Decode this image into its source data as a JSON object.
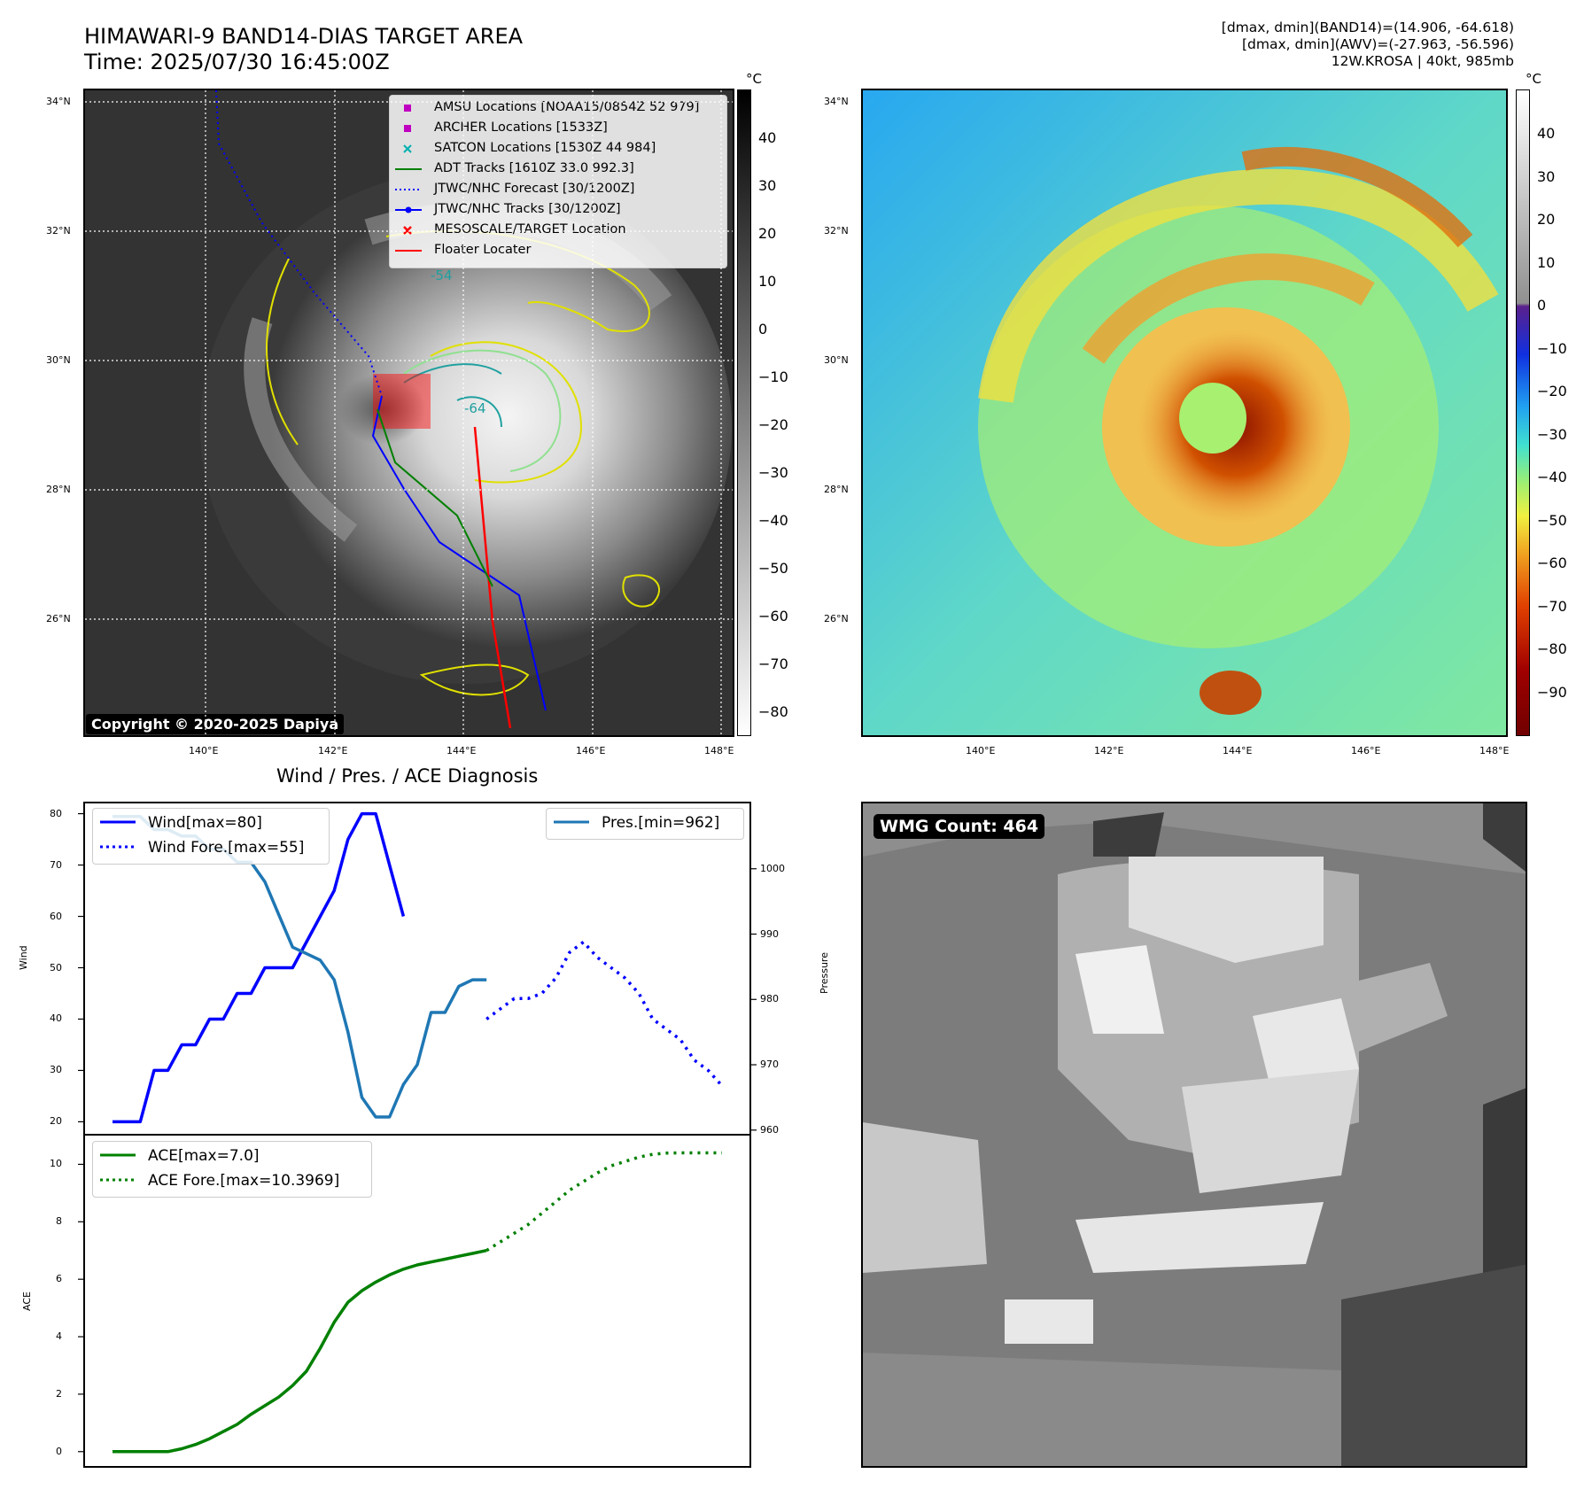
{
  "header": {
    "title_line1": "HIMAWARI-9 BAND14-DIAS TARGET AREA",
    "title_line2": "Time: 2025/07/30 16:45:00Z",
    "info_line1": "[dmax, dmin](BAND14)=(14.906, -64.618)",
    "info_line2": "[dmax, dmin](AWV)=(-27.963, -56.596)",
    "info_line3": "12W.KROSA | 40kt, 985mb"
  },
  "maps": {
    "lat_labels": [
      "34°N",
      "32°N",
      "30°N",
      "28°N",
      "26°N"
    ],
    "lon_labels": [
      "140°E",
      "142°E",
      "144°E",
      "146°E",
      "148°E"
    ],
    "colorbar1": {
      "unit": "°C",
      "ticks": [
        "40",
        "30",
        "20",
        "10",
        "0",
        "−10",
        "−20",
        "−30",
        "−40",
        "−50",
        "−60",
        "−70",
        "−80"
      ]
    },
    "colorbar2": {
      "unit": "°C",
      "ticks": [
        "40",
        "30",
        "20",
        "10",
        "0",
        "−10",
        "−20",
        "−30",
        "−40",
        "−50",
        "−60",
        "−70",
        "−80",
        "−90"
      ]
    },
    "contour_labels": [
      "-54",
      "-64"
    ],
    "copyright": "Copyright © 2020-2025 Dapiya",
    "legend": [
      {
        "label": "AMSU Locations [NOAA15/0854Z 52 979]",
        "marker": "square",
        "color": "#c000c0"
      },
      {
        "label": "ARCHER Locations [1533Z]",
        "marker": "square",
        "color": "#c000c0"
      },
      {
        "label": "SATCON Locations [1530Z 44 984]",
        "marker": "x",
        "color": "#00b0b0"
      },
      {
        "label": "ADT Tracks [1610Z 33.0 992.3]",
        "marker": "line",
        "color": "#008000"
      },
      {
        "label": "JTWC/NHC Forecast [30/1200Z]",
        "marker": "dotted",
        "color": "#0000ff"
      },
      {
        "label": "JTWC/NHC Tracks [30/1200Z]",
        "marker": "line-dot",
        "color": "#0000ff"
      },
      {
        "label": "MESOSCALE/TARGET Location",
        "marker": "x",
        "color": "#ff0000"
      },
      {
        "label": "Floater Locater",
        "marker": "line",
        "color": "#ff0000"
      }
    ]
  },
  "chart_data": [
    {
      "type": "line",
      "title": "Wind / Pres. / ACE Diagnosis",
      "ylabel": "Wind",
      "ylabel_right": "Pressure",
      "ylim": [
        18,
        82
      ],
      "ylim_right": [
        960,
        1010
      ],
      "yticks": [
        "20",
        "30",
        "40",
        "50",
        "60",
        "70",
        "80"
      ],
      "yticks_right": [
        "960",
        "970",
        "980",
        "990",
        "1000"
      ],
      "series": [
        {
          "name": "Wind[max=80]",
          "axis": "left",
          "style": "solid",
          "color": "#0000ff",
          "x": [
            0,
            1,
            2,
            3,
            4,
            5,
            6,
            7,
            8,
            9,
            10,
            11,
            12,
            13,
            14,
            15,
            16,
            17,
            18,
            19,
            20,
            21
          ],
          "values": [
            20,
            20,
            20,
            30,
            30,
            35,
            35,
            40,
            40,
            45,
            45,
            50,
            50,
            50,
            55,
            60,
            65,
            75,
            80,
            80,
            70,
            60
          ]
        },
        {
          "name": "Wind Fore.[max=55]",
          "axis": "left",
          "style": "dotted",
          "color": "#0000ff",
          "x": [
            27,
            28,
            29,
            30,
            31,
            32,
            33,
            34,
            35,
            36,
            37,
            38,
            39,
            40,
            41,
            42,
            43,
            44
          ],
          "values": [
            40,
            42,
            44,
            44,
            45,
            48,
            53,
            55,
            52,
            50,
            48,
            45,
            40,
            38,
            36,
            32,
            30,
            27
          ]
        },
        {
          "name": "Pres.[min=962]",
          "axis": "right",
          "style": "solid",
          "color": "#1f77b4",
          "x": [
            0,
            1,
            2,
            3,
            4,
            5,
            6,
            7,
            8,
            9,
            10,
            11,
            12,
            13,
            14,
            15,
            16,
            17,
            18,
            19,
            20,
            21,
            22,
            23,
            24,
            25,
            26,
            27
          ],
          "values": [
            1008,
            1008,
            1008,
            1006,
            1006,
            1005,
            1005,
            1003,
            1003,
            1001,
            1001,
            998,
            993,
            988,
            987,
            986,
            983,
            975,
            965,
            962,
            962,
            967,
            970,
            978,
            978,
            982,
            983,
            983
          ]
        }
      ]
    },
    {
      "type": "line",
      "ylabel": "ACE",
      "ylim": [
        -0.5,
        11.0
      ],
      "yticks": [
        "0",
        "2",
        "4",
        "6",
        "8",
        "10"
      ],
      "series": [
        {
          "name": "ACE[max=7.0]",
          "style": "solid",
          "color": "#008000",
          "x": [
            0,
            1,
            2,
            3,
            4,
            5,
            6,
            7,
            8,
            9,
            10,
            11,
            12,
            13,
            14,
            15,
            16,
            17,
            18,
            19,
            20,
            21,
            22,
            23,
            24,
            25,
            26,
            27
          ],
          "values": [
            0,
            0,
            0,
            0,
            0,
            0.1,
            0.25,
            0.45,
            0.7,
            0.95,
            1.3,
            1.6,
            1.9,
            2.3,
            2.8,
            3.6,
            4.5,
            5.2,
            5.6,
            5.9,
            6.15,
            6.35,
            6.5,
            6.6,
            6.7,
            6.8,
            6.9,
            7.0
          ]
        },
        {
          "name": "ACE Fore.[max=10.3969]",
          "style": "dotted",
          "color": "#008000",
          "x": [
            27,
            28,
            29,
            30,
            31,
            32,
            33,
            34,
            35,
            36,
            37,
            38,
            39,
            40,
            41,
            42,
            43,
            44
          ],
          "values": [
            7.0,
            7.3,
            7.6,
            7.9,
            8.3,
            8.7,
            9.1,
            9.4,
            9.7,
            9.95,
            10.1,
            10.25,
            10.35,
            10.39,
            10.4,
            10.4,
            10.4,
            10.4
          ]
        }
      ]
    }
  ],
  "wmg": {
    "badge": "WMG Count: 464"
  },
  "colors": {
    "blue": "#0000ff",
    "pres": "#1f77b4",
    "green": "#008000",
    "red": "#ff0000",
    "magenta": "#c000c0"
  }
}
